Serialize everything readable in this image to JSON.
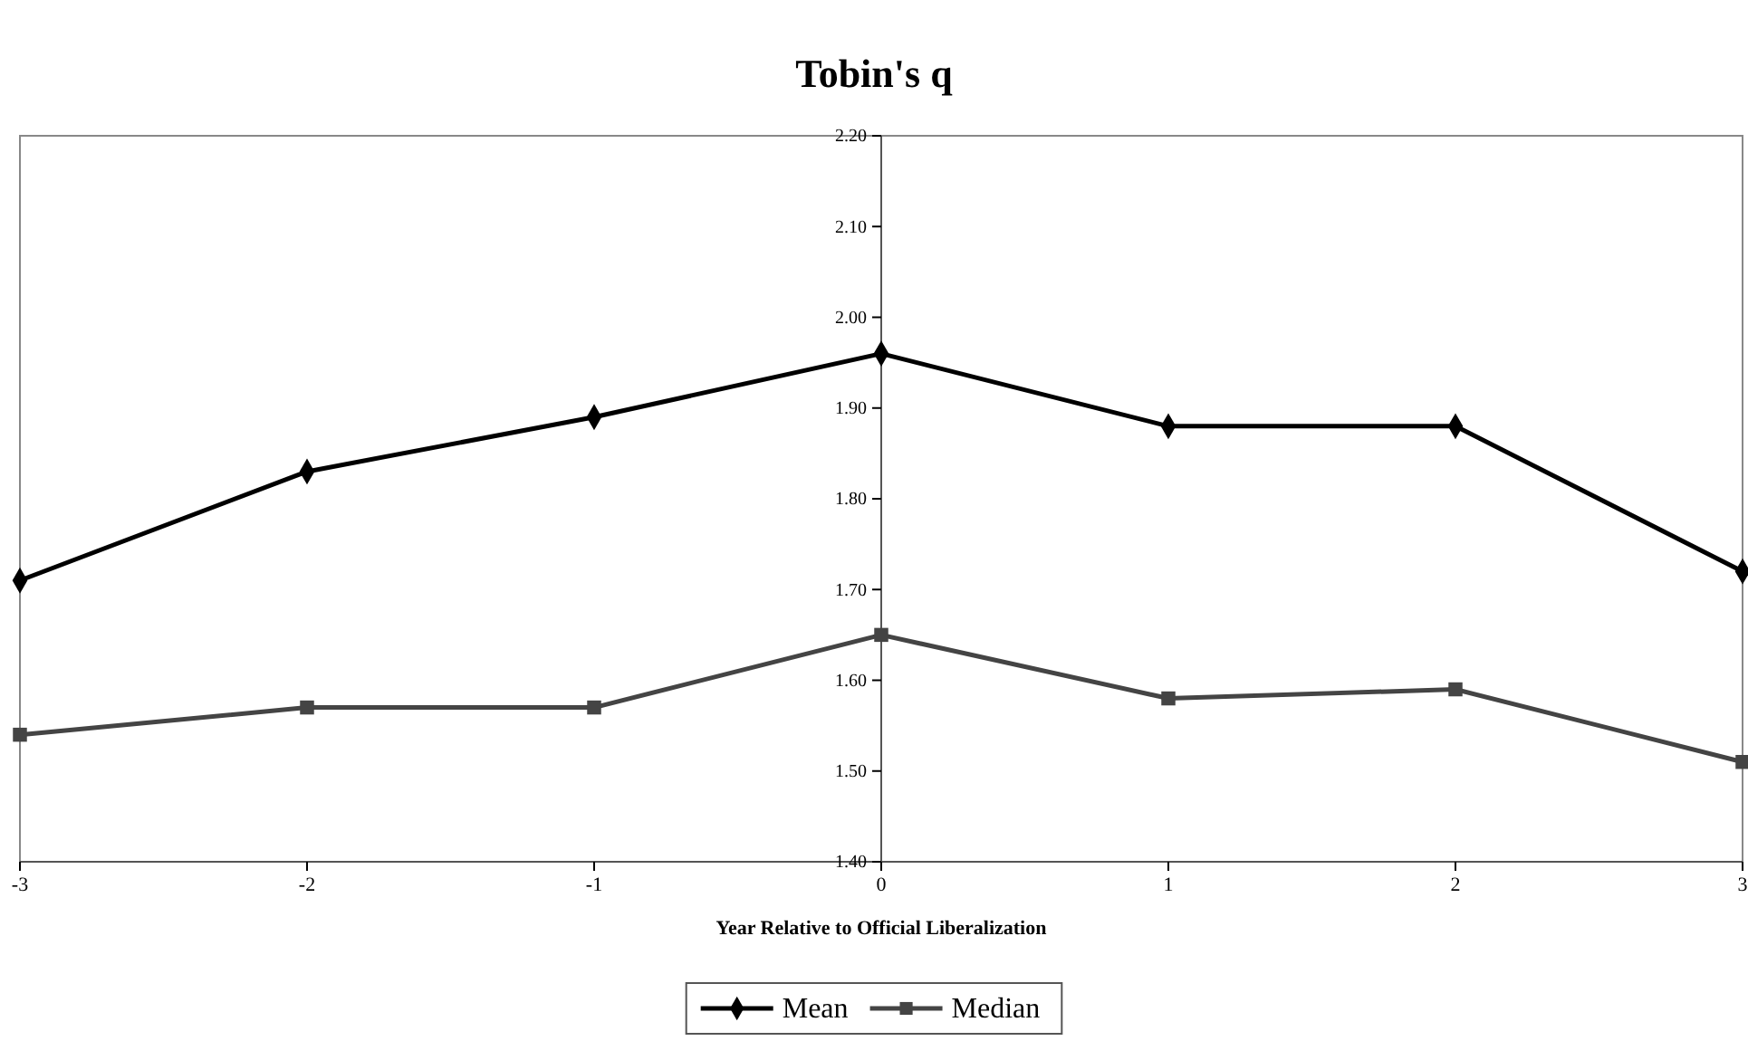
{
  "chart_data": {
    "type": "line",
    "title": "Tobin's q",
    "xlabel": "Year Relative to Official Liberalization",
    "x": [
      -3,
      -2,
      -1,
      0,
      1,
      2,
      3
    ],
    "series": [
      {
        "name": "Mean",
        "color": "#000000",
        "marker": "diamond",
        "values": [
          1.71,
          1.83,
          1.89,
          1.96,
          1.88,
          1.88,
          1.72
        ]
      },
      {
        "name": "Median",
        "color": "#444444",
        "marker": "square",
        "values": [
          1.54,
          1.57,
          1.57,
          1.65,
          1.58,
          1.59,
          1.51
        ]
      }
    ],
    "xlim": [
      -3,
      3
    ],
    "xticks": [
      -3,
      -2,
      -1,
      0,
      1,
      2,
      3
    ],
    "ylim": [
      1.4,
      2.2
    ],
    "yticks": [
      {
        "value": 1.4,
        "label": "1.40"
      },
      {
        "value": 1.5,
        "label": "1.50"
      },
      {
        "value": 1.6,
        "label": "1.60"
      },
      {
        "value": 1.7,
        "label": "1.70"
      },
      {
        "value": 1.8,
        "label": "1.80"
      },
      {
        "value": 1.9,
        "label": "1.90"
      },
      {
        "value": 2.0,
        "label": "2.00"
      },
      {
        "value": 2.1,
        "label": "2.10"
      },
      {
        "value": 2.2,
        "label": "2.20"
      }
    ],
    "grid": false,
    "legend": "bottom"
  }
}
